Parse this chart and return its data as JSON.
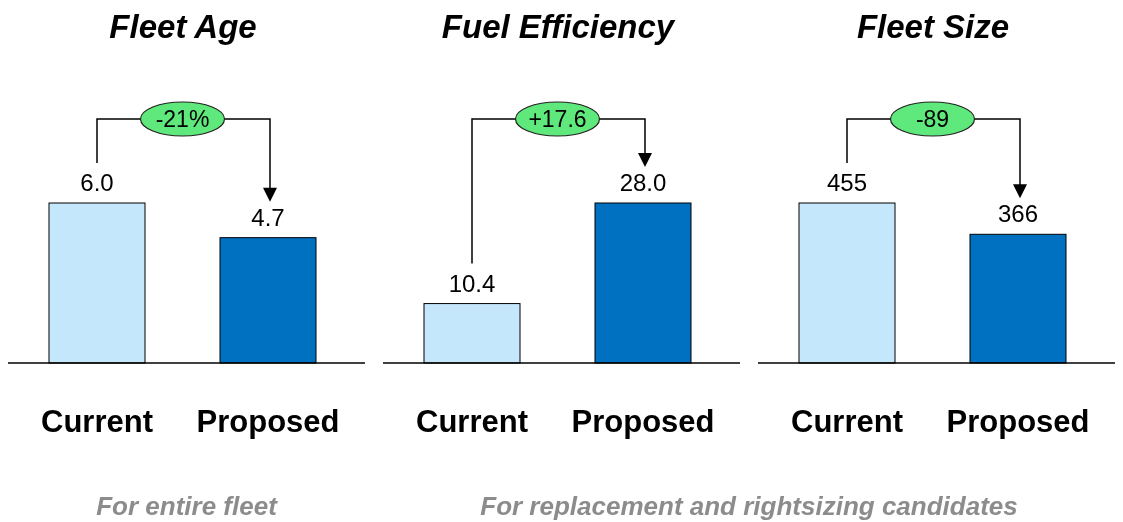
{
  "chart_data": [
    {
      "type": "bar",
      "title": "Fleet Age",
      "categories": [
        "Current",
        "Proposed"
      ],
      "values": [
        6.0,
        4.7
      ],
      "colors": [
        "#c5e7fb",
        "#0070c0"
      ],
      "data_labels": true,
      "value_labels": [
        "6.0",
        "4.7"
      ],
      "annotations": [
        "-21%",
        "For entire fleet"
      ]
    },
    {
      "type": "bar",
      "title": "Fuel Efficiency",
      "categories": [
        "Current",
        "Proposed"
      ],
      "values": [
        10.4,
        28.0
      ],
      "colors": [
        "#c5e7fb",
        "#0070c0"
      ],
      "data_labels": true,
      "value_labels": [
        "10.4",
        "28.0"
      ],
      "annotations": [
        "+17.6",
        "For replacement and rightsizing candidates"
      ]
    },
    {
      "type": "bar",
      "title": "Fleet Size",
      "categories": [
        "Current",
        "Proposed"
      ],
      "values": [
        455,
        366
      ],
      "colors": [
        "#c5e7fb",
        "#0070c0"
      ],
      "data_labels": true,
      "value_labels": [
        "455",
        "366"
      ],
      "annotations": [
        "-89"
      ]
    }
  ]
}
